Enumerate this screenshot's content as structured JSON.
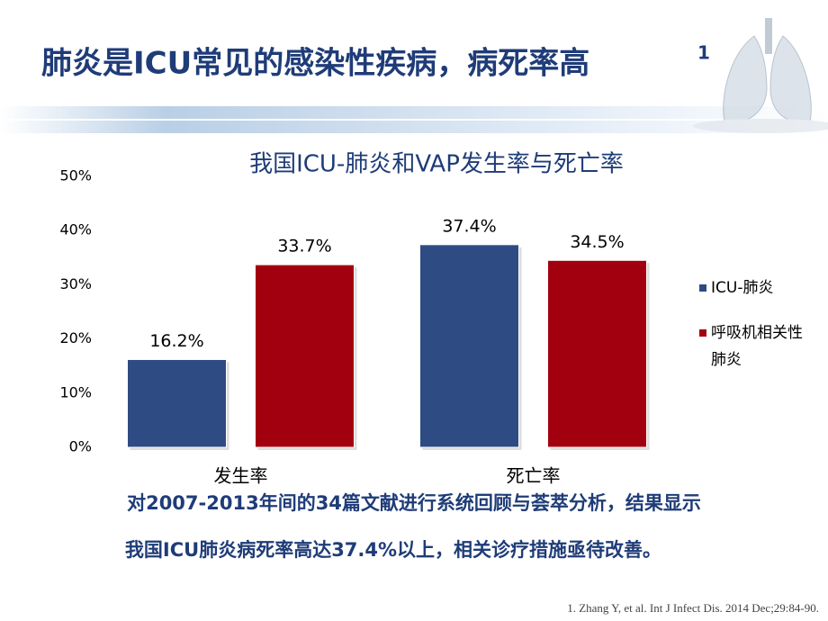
{
  "slide_title": "肺炎是ICU常见的感染性疾病，病死率高",
  "title_ref": "1",
  "chart_data": {
    "type": "bar",
    "title": "我国ICU-肺炎和VAP发生率与死亡率",
    "categories": [
      "发生率",
      "死亡率"
    ],
    "series": [
      {
        "name": "ICU-肺炎",
        "color": "#2f4b84",
        "values": [
          16.2,
          37.4
        ],
        "value_labels": [
          "16.2%",
          "37.4%"
        ]
      },
      {
        "name": "呼吸机相关性肺炎",
        "color": "#a3000f",
        "values": [
          33.7,
          34.5
        ],
        "value_labels": [
          "33.7%",
          "34.5%"
        ]
      }
    ],
    "ylim": [
      0,
      50
    ],
    "yticks": [
      {
        "value": 0,
        "label": "0%"
      },
      {
        "value": 10,
        "label": "10%"
      },
      {
        "value": 20,
        "label": "20%"
      },
      {
        "value": 30,
        "label": "30%"
      },
      {
        "value": 40,
        "label": "40%"
      },
      {
        "value": 50,
        "label": "50%"
      }
    ],
    "legend": "right"
  },
  "summary": [
    "对2007-2013年间的34篇文献进行系统回顾与荟萃分析，结果显示",
    "我国ICU肺炎病死率高达37.4%以上，相关诊疗措施亟待改善。"
  ],
  "footnote": "1. Zhang Y, et al. Int J Infect Dis. 2014 Dec;29:84-90."
}
